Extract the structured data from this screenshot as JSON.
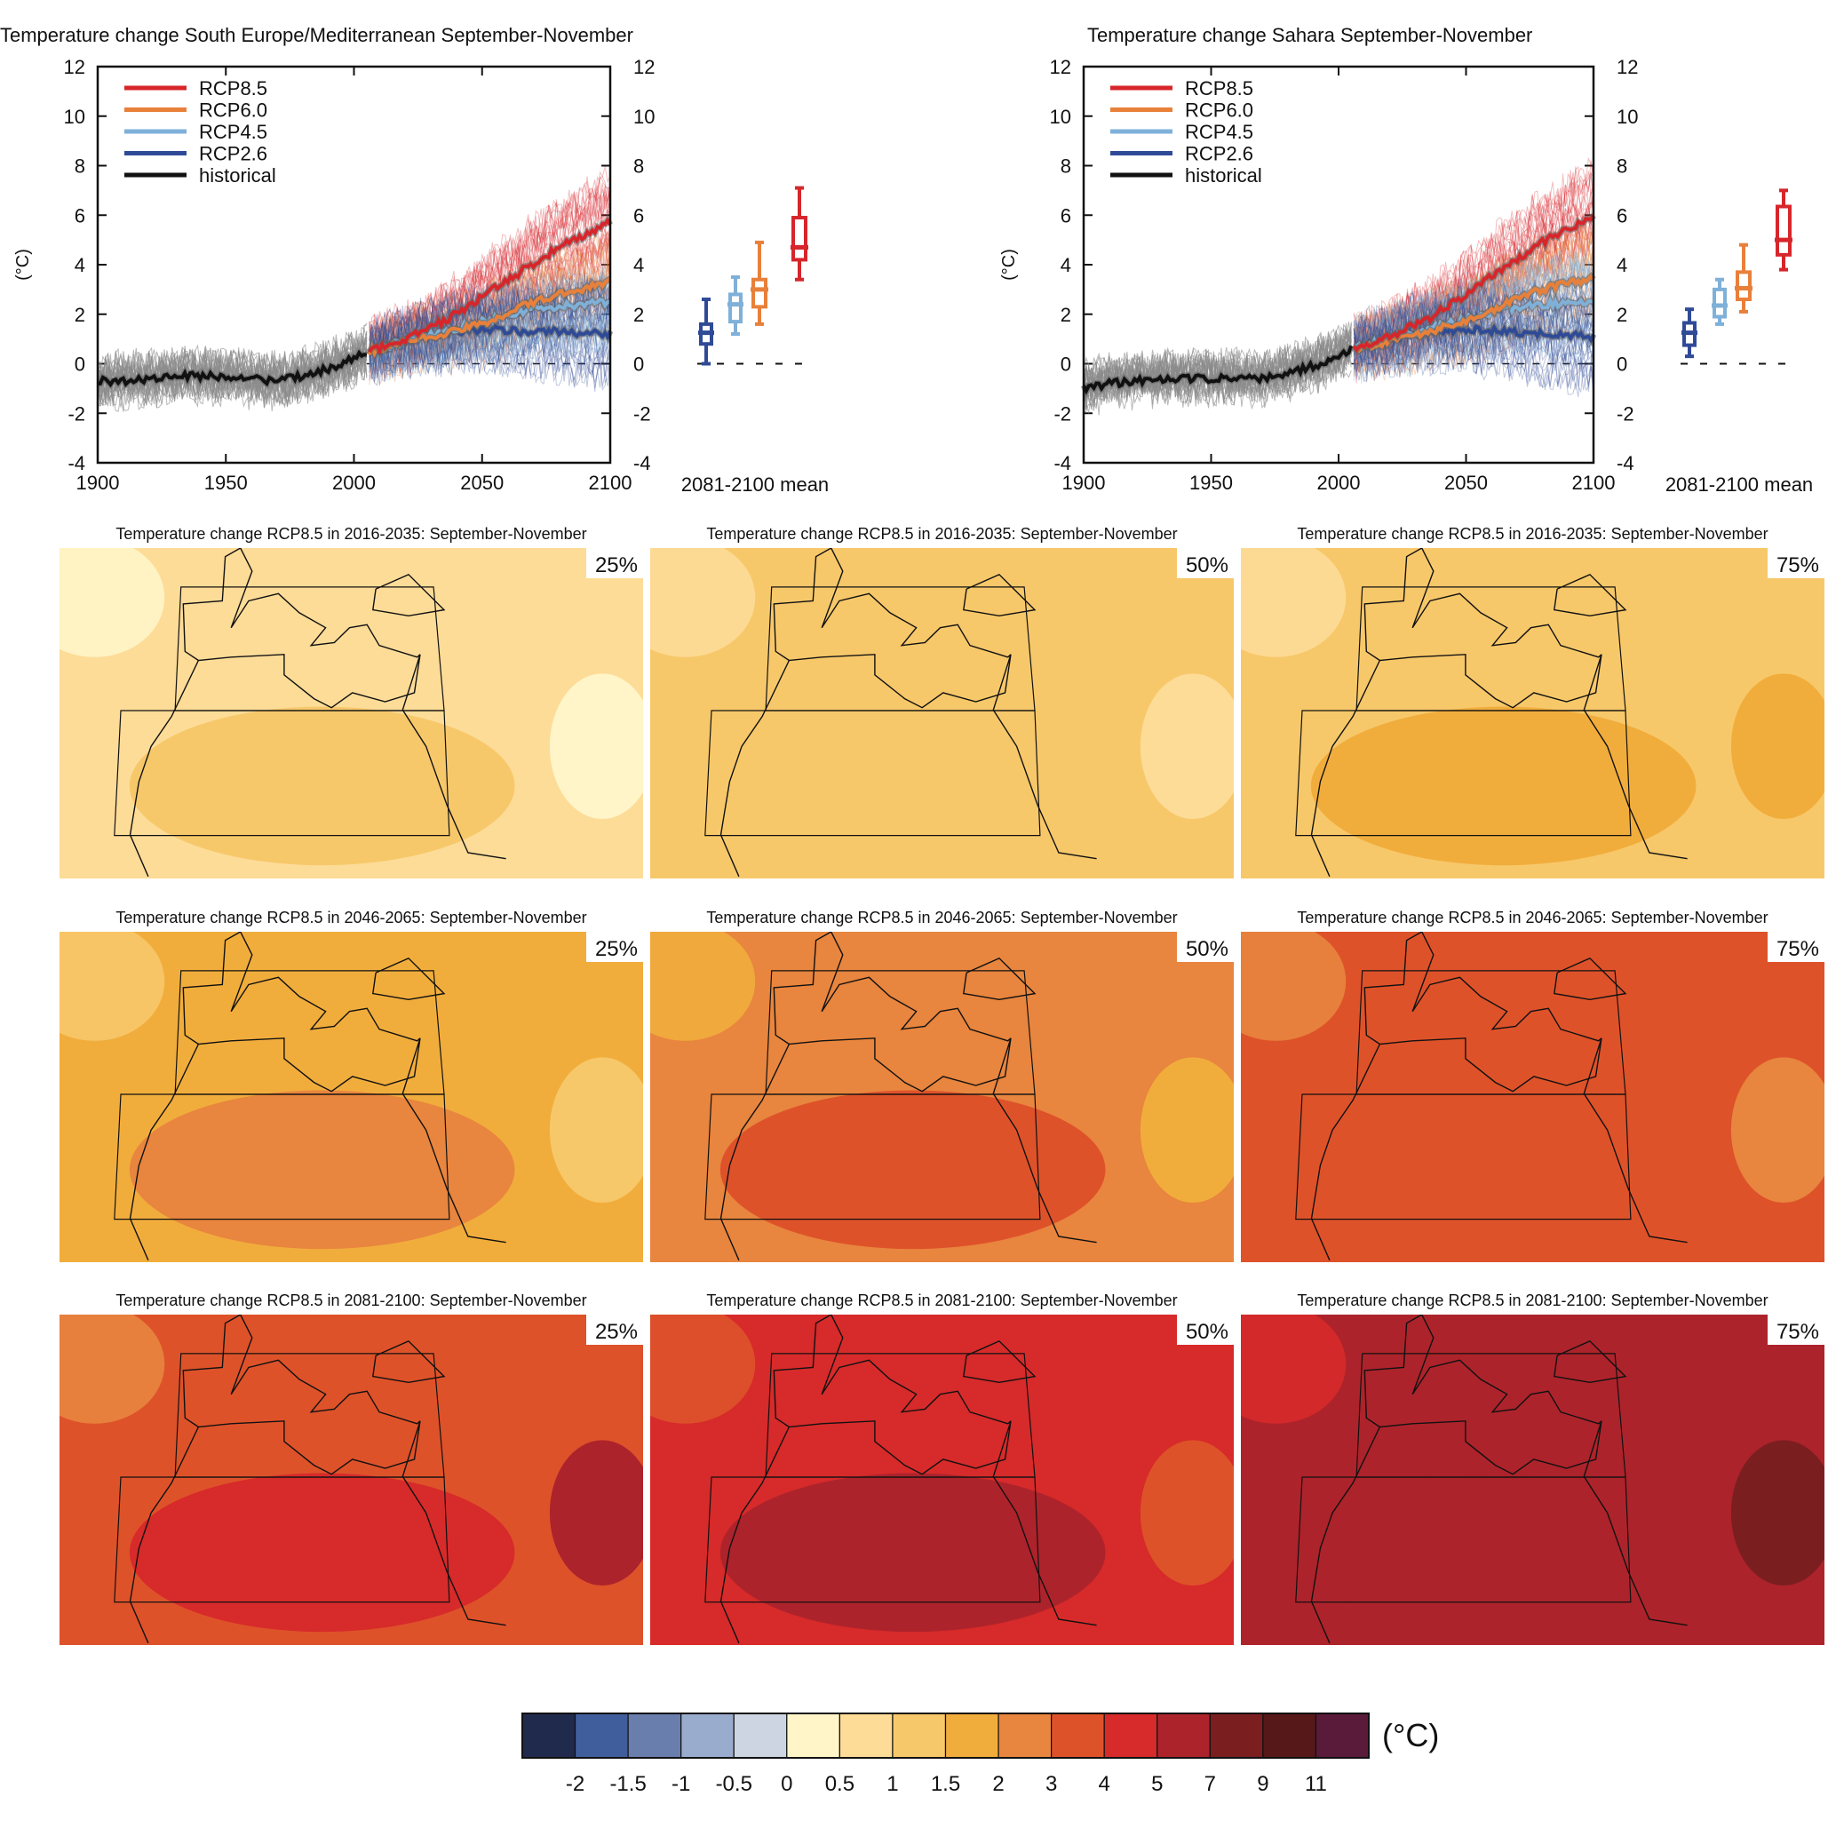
{
  "chart_data": [
    {
      "type": "line",
      "title": "Temperature change South Europe/Mediterranean September-November",
      "ylabel": "(°C)",
      "xlim": [
        1900,
        2100
      ],
      "ylim": [
        -4,
        12
      ],
      "xticks": [
        1900,
        1950,
        2000,
        2050,
        2100
      ],
      "yticks": [
        -4,
        -2,
        0,
        2,
        4,
        6,
        8,
        10,
        12
      ],
      "legend_position": "top-left",
      "series": [
        {
          "name": "RCP8.5",
          "color": "#d7262b",
          "x": [
            2006,
            2020,
            2035,
            2050,
            2065,
            2080,
            2100
          ],
          "y": [
            0.5,
            1.0,
            1.7,
            2.7,
            3.7,
            4.7,
            5.7
          ]
        },
        {
          "name": "RCP6.0",
          "color": "#e8803a",
          "x": [
            2006,
            2020,
            2035,
            2050,
            2065,
            2080,
            2100
          ],
          "y": [
            0.5,
            0.9,
            1.2,
            1.6,
            2.3,
            2.8,
            3.3
          ]
        },
        {
          "name": "RCP4.5",
          "color": "#7fb0d8",
          "x": [
            2006,
            2020,
            2035,
            2050,
            2065,
            2080,
            2100
          ],
          "y": [
            0.5,
            0.9,
            1.3,
            1.7,
            2.1,
            2.3,
            2.5
          ]
        },
        {
          "name": "RCP2.6",
          "color": "#2f4a96",
          "x": [
            2006,
            2020,
            2035,
            2050,
            2065,
            2080,
            2100
          ],
          "y": [
            0.5,
            0.9,
            1.2,
            1.4,
            1.3,
            1.3,
            1.2
          ]
        },
        {
          "name": "historical",
          "color": "#111111",
          "x": [
            1900,
            1910,
            1920,
            1930,
            1940,
            1950,
            1960,
            1970,
            1980,
            1990,
            2000,
            2005
          ],
          "y": [
            -0.7,
            -0.7,
            -0.6,
            -0.5,
            -0.5,
            -0.5,
            -0.6,
            -0.7,
            -0.5,
            -0.2,
            0.2,
            0.5
          ]
        }
      ],
      "boxplot": {
        "label": "2081-2100 mean",
        "boxes": [
          {
            "name": "RCP2.6",
            "color": "#2f4a96",
            "min": 0.0,
            "q1": 0.8,
            "median": 1.25,
            "q3": 1.6,
            "max": 2.6
          },
          {
            "name": "RCP4.5",
            "color": "#7fb0d8",
            "min": 1.2,
            "q1": 1.7,
            "median": 2.4,
            "q3": 2.8,
            "max": 3.5
          },
          {
            "name": "RCP6.0",
            "color": "#e8803a",
            "min": 1.6,
            "q1": 2.3,
            "median": 3.0,
            "q3": 3.4,
            "max": 4.9
          },
          {
            "name": "RCP8.5",
            "color": "#d7262b",
            "min": 3.4,
            "q1": 4.2,
            "median": 4.7,
            "q3": 5.9,
            "max": 7.1
          }
        ]
      }
    },
    {
      "type": "line",
      "title": "Temperature change Sahara September-November",
      "ylabel": "(°C)",
      "xlim": [
        1900,
        2100
      ],
      "ylim": [
        -4,
        12
      ],
      "xticks": [
        1900,
        1950,
        2000,
        2050,
        2100
      ],
      "yticks": [
        -4,
        -2,
        0,
        2,
        4,
        6,
        8,
        10,
        12
      ],
      "legend_position": "top-left",
      "series": [
        {
          "name": "RCP8.5",
          "color": "#d7262b",
          "x": [
            2006,
            2020,
            2035,
            2050,
            2065,
            2080,
            2100
          ],
          "y": [
            0.6,
            1.1,
            1.8,
            2.8,
            3.9,
            4.9,
            6.0
          ]
        },
        {
          "name": "RCP6.0",
          "color": "#e8803a",
          "x": [
            2006,
            2020,
            2035,
            2050,
            2065,
            2080,
            2100
          ],
          "y": [
            0.6,
            0.9,
            1.3,
            1.7,
            2.4,
            3.0,
            3.5
          ]
        },
        {
          "name": "RCP4.5",
          "color": "#7fb0d8",
          "x": [
            2006,
            2020,
            2035,
            2050,
            2065,
            2080,
            2100
          ],
          "y": [
            0.6,
            1.0,
            1.4,
            1.8,
            2.2,
            2.4,
            2.5
          ]
        },
        {
          "name": "RCP2.6",
          "color": "#2f4a96",
          "x": [
            2006,
            2020,
            2035,
            2050,
            2065,
            2080,
            2100
          ],
          "y": [
            0.6,
            1.0,
            1.3,
            1.4,
            1.3,
            1.2,
            1.1
          ]
        },
        {
          "name": "historical",
          "color": "#111111",
          "x": [
            1900,
            1910,
            1920,
            1930,
            1940,
            1950,
            1960,
            1970,
            1980,
            1990,
            2000,
            2005
          ],
          "y": [
            -1.0,
            -0.8,
            -0.7,
            -0.6,
            -0.6,
            -0.6,
            -0.6,
            -0.6,
            -0.4,
            -0.1,
            0.3,
            0.6
          ]
        }
      ],
      "boxplot": {
        "label": "2081-2100 mean",
        "boxes": [
          {
            "name": "RCP2.6",
            "color": "#2f4a96",
            "min": 0.3,
            "q1": 0.75,
            "median": 1.25,
            "q3": 1.65,
            "max": 2.2
          },
          {
            "name": "RCP4.5",
            "color": "#7fb0d8",
            "min": 1.6,
            "q1": 1.9,
            "median": 2.35,
            "q3": 3.0,
            "max": 3.4
          },
          {
            "name": "RCP6.0",
            "color": "#e8803a",
            "min": 2.1,
            "q1": 2.6,
            "median": 3.05,
            "q3": 3.7,
            "max": 4.8
          },
          {
            "name": "RCP8.5",
            "color": "#d7262b",
            "min": 3.8,
            "q1": 4.4,
            "median": 5.0,
            "q3": 6.35,
            "max": 7.0
          }
        ]
      }
    },
    {
      "type": "heatmap",
      "panels": [
        {
          "title": "Temperature change RCP8.5 in 2016-2035: September-November",
          "percentile": "25%",
          "background_level": 6,
          "sahara_level": 7,
          "accent_level": 5
        },
        {
          "title": "Temperature change RCP8.5 in 2016-2035: September-November",
          "percentile": "50%",
          "background_level": 7,
          "sahara_level": 7,
          "accent_level": 6
        },
        {
          "title": "Temperature change RCP8.5 in 2016-2035: September-November",
          "percentile": "75%",
          "background_level": 7,
          "sahara_level": 8,
          "accent_level": 8
        },
        {
          "title": "Temperature change RCP8.5 in 2046-2065: September-November",
          "percentile": "25%",
          "background_level": 8,
          "sahara_level": 9,
          "accent_level": 7
        },
        {
          "title": "Temperature change RCP8.5 in 2046-2065: September-November",
          "percentile": "50%",
          "background_level": 9,
          "sahara_level": 10,
          "accent_level": 8
        },
        {
          "title": "Temperature change RCP8.5 in 2046-2065: September-November",
          "percentile": "75%",
          "background_level": 10,
          "sahara_level": 10,
          "accent_level": 9
        },
        {
          "title": "Temperature change RCP8.5 in 2081-2100: September-November",
          "percentile": "25%",
          "background_level": 10,
          "sahara_level": 11,
          "accent_level": 12
        },
        {
          "title": "Temperature change RCP8.5 in 2081-2100: September-November",
          "percentile": "50%",
          "background_level": 11,
          "sahara_level": 12,
          "accent_level": 10
        },
        {
          "title": "Temperature change RCP8.5 in 2081-2100: September-November",
          "percentile": "75%",
          "background_level": 12,
          "sahara_level": 12,
          "accent_level": 13
        }
      ],
      "colorbar": {
        "unit": "(°C)",
        "tick_labels": [
          "-2",
          "-1.5",
          "-1",
          "-0.5",
          "0",
          "0.5",
          "1",
          "1.5",
          "2",
          "3",
          "4",
          "5",
          "7",
          "9",
          "11"
        ],
        "colors": [
          "#1f2a4d",
          "#415e9c",
          "#6a7eae",
          "#9aaccd",
          "#cdd5e2",
          "#fff5c8",
          "#fddc98",
          "#f7c86a",
          "#f1ad3c",
          "#e8853e",
          "#de522a",
          "#d72a2a",
          "#ad232b",
          "#7b1e20",
          "#561818",
          "#5a1a3a"
        ]
      }
    }
  ]
}
